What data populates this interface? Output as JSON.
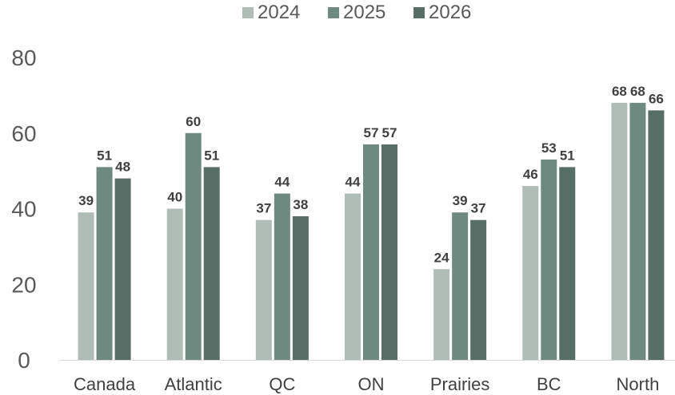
{
  "chart_data": {
    "type": "bar",
    "categories": [
      "Canada",
      "Atlantic",
      "QC",
      "ON",
      "Prairies",
      "BC",
      "North"
    ],
    "series": [
      {
        "name": "2024",
        "values": [
          39,
          40,
          37,
          44,
          24,
          46,
          68
        ],
        "color": "#b0bcb6"
      },
      {
        "name": "2025",
        "values": [
          51,
          60,
          44,
          57,
          39,
          53,
          68
        ],
        "color": "#6e8a80"
      },
      {
        "name": "2026",
        "values": [
          48,
          51,
          38,
          57,
          37,
          51,
          66
        ],
        "color": "#576e66"
      }
    ],
    "yticks": [
      "0",
      "20",
      "40",
      "60",
      "80"
    ],
    "ylim": [
      0,
      80
    ],
    "legend_position": "top-center",
    "grid": false
  }
}
